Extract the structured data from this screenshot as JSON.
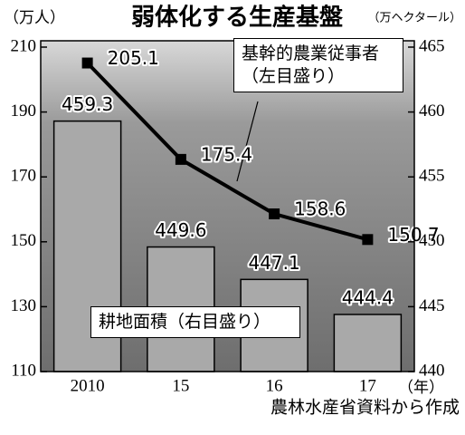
{
  "chart_data": {
    "type": "bar",
    "title": "弱体化する生産基盤",
    "ylabel": "（万人）",
    "y2label": "（万ヘクタール）",
    "xlabel": "（年）",
    "source": "農林水産省資料から作成",
    "categories": [
      "2010",
      "15",
      "16",
      "17"
    ],
    "series": [
      {
        "name": "耕地面積（右目盛り）",
        "type": "bar",
        "axis": "y2",
        "color": "#a9a9a9",
        "values": [
          459.3,
          449.6,
          447.1,
          444.4
        ]
      },
      {
        "name": "基幹的農業従事者（左目盛り）",
        "type": "line",
        "axis": "y",
        "color": "#000000",
        "values": [
          205.1,
          175.4,
          158.6,
          150.7
        ]
      }
    ],
    "ylim": [
      110,
      210
    ],
    "yticks": [
      110,
      130,
      150,
      170,
      190,
      210
    ],
    "y2lim": [
      440,
      465
    ],
    "y2ticks": [
      440,
      445,
      450,
      455,
      460,
      465
    ]
  }
}
